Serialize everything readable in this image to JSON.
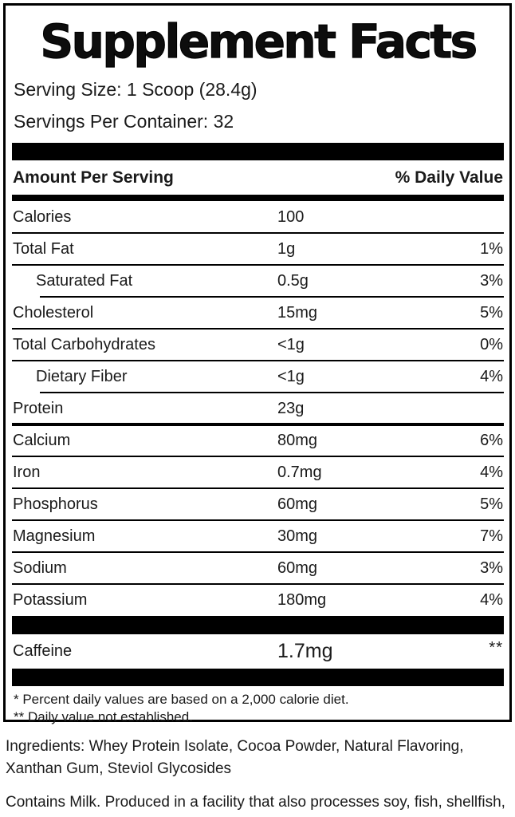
{
  "label": {
    "title": "Supplement Facts",
    "serving_size": "Serving Size: 1 Scoop (28.4g)",
    "servings_per_container": "Servings Per Container: 32",
    "header": {
      "amount_per_serving": "Amount Per Serving",
      "daily_value": "% Daily Value"
    },
    "rows": [
      {
        "name": "Calories",
        "amount": "100",
        "dv": ""
      },
      {
        "name": "Total Fat",
        "amount": "1g",
        "dv": "1%"
      },
      {
        "name": "Saturated Fat",
        "amount": "0.5g",
        "dv": "3%"
      },
      {
        "name": "Cholesterol",
        "amount": "15mg",
        "dv": "5%"
      },
      {
        "name": "Total Carbohydrates",
        "amount": "<1g",
        "dv": "0%"
      },
      {
        "name": "Dietary Fiber",
        "amount": "<1g",
        "dv": "4%"
      },
      {
        "name": "Protein",
        "amount": "23g",
        "dv": ""
      },
      {
        "name": "Calcium",
        "amount": "80mg",
        "dv": "6%"
      },
      {
        "name": "Iron",
        "amount": "0.7mg",
        "dv": "4%"
      },
      {
        "name": "Phosphorus",
        "amount": "60mg",
        "dv": "5%"
      },
      {
        "name": "Magnesium",
        "amount": "30mg",
        "dv": "7%"
      },
      {
        "name": "Sodium",
        "amount": "60mg",
        "dv": "3%"
      },
      {
        "name": "Potassium",
        "amount": "180mg",
        "dv": "4%"
      }
    ],
    "caffeine": {
      "name": "Caffeine",
      "amount": "1.7mg",
      "dv": "**"
    },
    "footnotes": [
      "* Percent daily values are based on a 2,000 calorie diet.",
      "** Daily value not established."
    ]
  },
  "ingredients": "Ingredients: Whey Protein Isolate, Cocoa Powder, Natural Flavoring,\nXanthan Gum, Steviol Glycosides",
  "allergen": "Contains Milk. Produced in a facility that also processes soy, fish, shellfish,\nmilk, peanuts, tree nuts, wheat, and eggs.",
  "colors": {
    "ink": "#000000",
    "background": "#ffffff"
  }
}
